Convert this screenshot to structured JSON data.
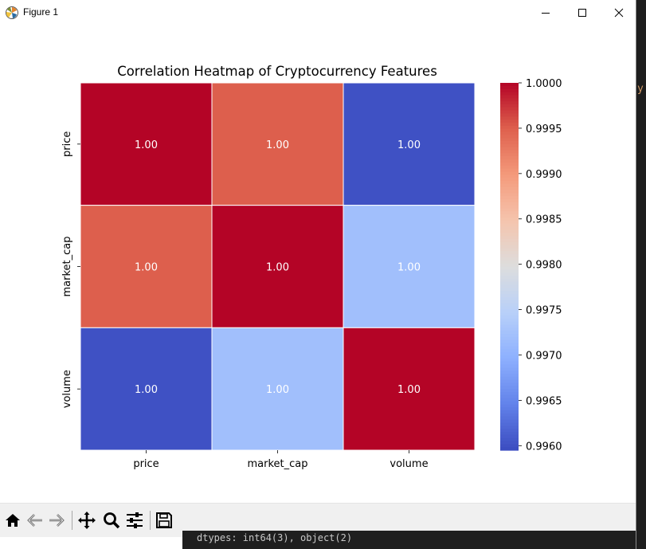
{
  "window": {
    "title": "Figure 1",
    "icons": {
      "app": "matplotlib-icon",
      "minimize": "minimize-icon",
      "maximize": "maximize-icon",
      "close": "close-icon"
    }
  },
  "toolbar": {
    "buttons": [
      {
        "name": "home-icon"
      },
      {
        "name": "back-icon"
      },
      {
        "name": "forward-icon"
      },
      {
        "name": "pan-icon"
      },
      {
        "name": "zoom-icon"
      },
      {
        "name": "configure-subplots-icon"
      },
      {
        "name": "save-icon"
      }
    ]
  },
  "background": {
    "terminal_text": "dtypes: int64(3), object(2)",
    "accent_fragment": "y"
  },
  "chart_data": {
    "type": "heatmap",
    "title": "Correlation Heatmap of Cryptocurrency Features",
    "x_categories": [
      "price",
      "market_cap",
      "volume"
    ],
    "y_categories": [
      "price",
      "market_cap",
      "volume"
    ],
    "values": [
      [
        1.0,
        0.9995,
        0.996
      ],
      [
        0.9995,
        1.0,
        0.9972
      ],
      [
        0.996,
        0.9972,
        1.0
      ]
    ],
    "annotations": [
      [
        "1.00",
        "1.00",
        "1.00"
      ],
      [
        "1.00",
        "1.00",
        "1.00"
      ],
      [
        "1.00",
        "1.00",
        "1.00"
      ]
    ],
    "colormap": "coolwarm",
    "colorbar": {
      "min": 0.99595,
      "max": 1.0,
      "ticks": [
        1.0,
        0.9995,
        0.999,
        0.9985,
        0.998,
        0.9975,
        0.997,
        0.9965,
        0.996
      ],
      "tick_labels": [
        "1.0000",
        "0.9995",
        "0.9990",
        "0.9985",
        "0.9980",
        "0.9975",
        "0.9970",
        "0.9965",
        "0.9960"
      ]
    }
  }
}
